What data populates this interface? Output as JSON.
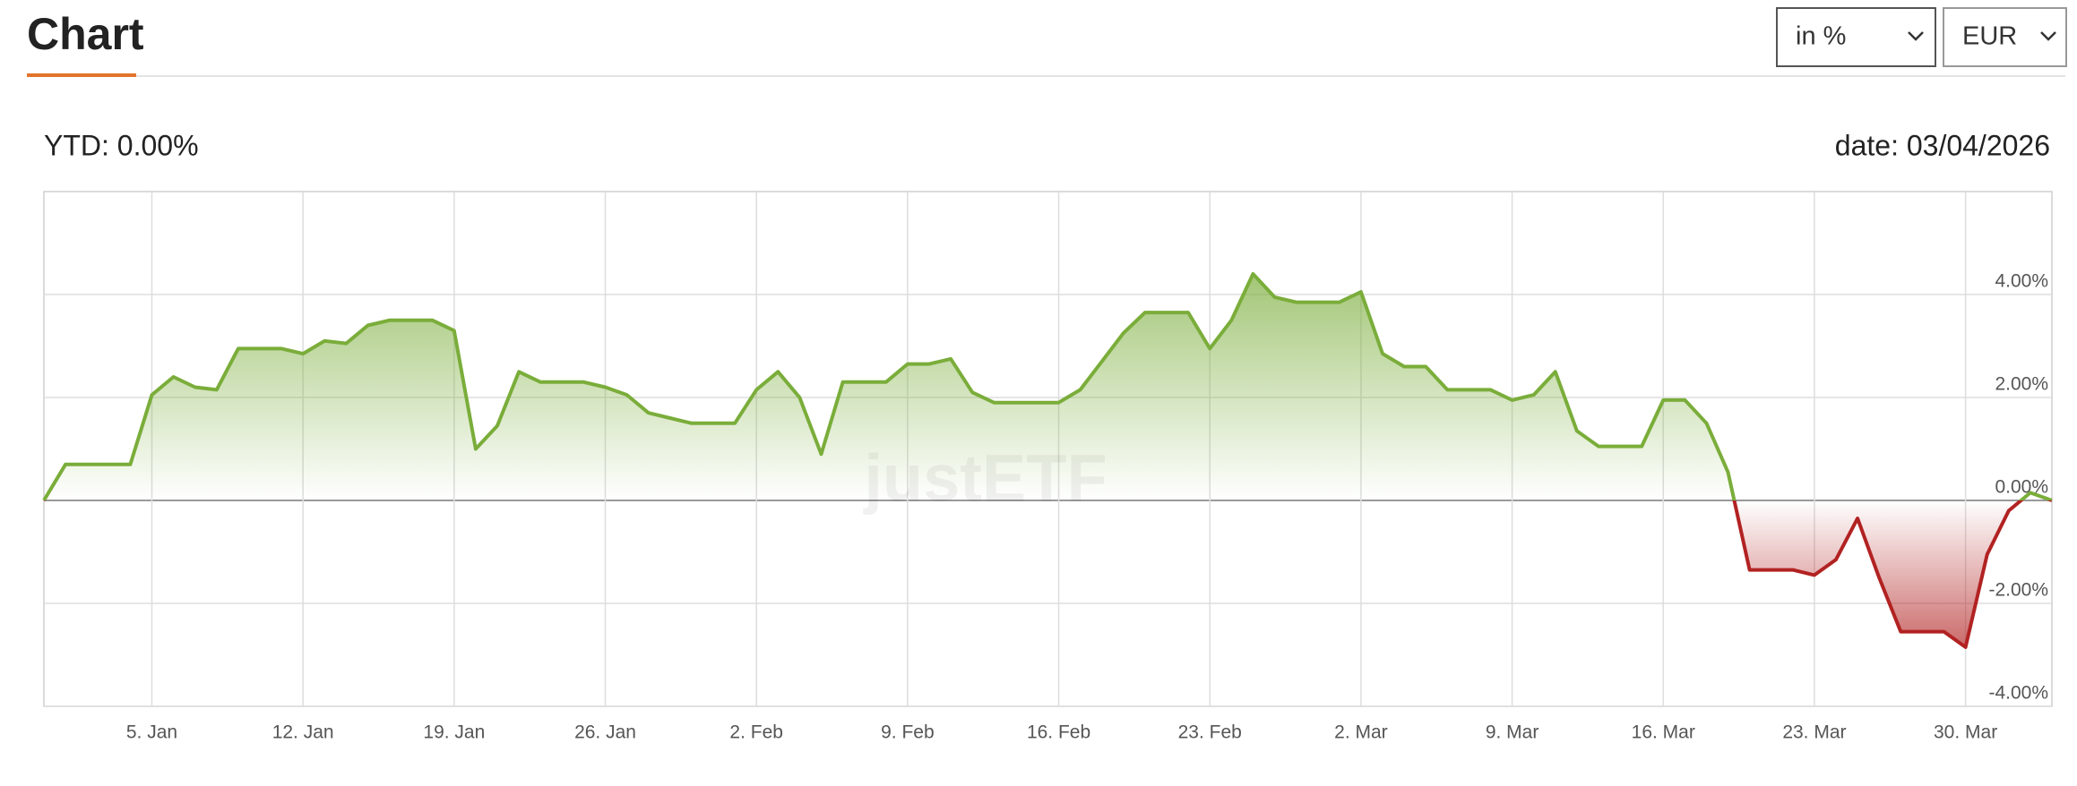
{
  "header": {
    "title": "Chart",
    "unit_select": "in %",
    "currency_select": "EUR"
  },
  "summary": {
    "ytd": "YTD: 0.00%",
    "date": "date: 03/04/2026"
  },
  "watermark": "justETF",
  "chart_data": {
    "type": "area",
    "x": [
      "2025-12-31",
      "2026-01-01",
      "2026-01-02",
      "2026-01-03",
      "2026-01-04",
      "2026-01-05",
      "2026-01-06",
      "2026-01-07",
      "2026-01-08",
      "2026-01-09",
      "2026-01-10",
      "2026-01-11",
      "2026-01-12",
      "2026-01-13",
      "2026-01-14",
      "2026-01-15",
      "2026-01-16",
      "2026-01-17",
      "2026-01-18",
      "2026-01-19",
      "2026-01-20",
      "2026-01-21",
      "2026-01-22",
      "2026-01-23",
      "2026-01-24",
      "2026-01-25",
      "2026-01-26",
      "2026-01-27",
      "2026-01-28",
      "2026-01-29",
      "2026-01-30",
      "2026-01-31",
      "2026-02-01",
      "2026-02-02",
      "2026-02-03",
      "2026-02-04",
      "2026-02-05",
      "2026-02-06",
      "2026-02-07",
      "2026-02-08",
      "2026-02-09",
      "2026-02-10",
      "2026-02-11",
      "2026-02-12",
      "2026-02-13",
      "2026-02-14",
      "2026-02-15",
      "2026-02-16",
      "2026-02-17",
      "2026-02-18",
      "2026-02-19",
      "2026-02-20",
      "2026-02-21",
      "2026-02-22",
      "2026-02-23",
      "2026-02-24",
      "2026-02-25",
      "2026-02-26",
      "2026-02-27",
      "2026-02-28",
      "2026-03-01",
      "2026-03-02",
      "2026-03-03",
      "2026-03-04",
      "2026-03-05",
      "2026-03-06",
      "2026-03-07",
      "2026-03-08",
      "2026-03-09",
      "2026-03-10",
      "2026-03-11",
      "2026-03-12",
      "2026-03-13",
      "2026-03-14",
      "2026-03-15",
      "2026-03-16",
      "2026-03-17",
      "2026-03-18",
      "2026-03-19",
      "2026-03-20",
      "2026-03-21",
      "2026-03-22",
      "2026-03-23",
      "2026-03-24",
      "2026-03-25",
      "2026-03-26",
      "2026-03-27",
      "2026-03-28",
      "2026-03-29",
      "2026-03-30",
      "2026-03-31",
      "2026-04-01",
      "2026-04-02",
      "2026-04-03"
    ],
    "values": [
      0,
      0.7,
      0.7,
      0.7,
      0.7,
      2.05,
      2.4,
      2.2,
      2.15,
      2.95,
      2.95,
      2.95,
      2.85,
      3.1,
      3.05,
      3.4,
      3.5,
      3.5,
      3.5,
      3.3,
      1.0,
      1.45,
      2.5,
      2.3,
      2.3,
      2.3,
      2.2,
      2.05,
      1.7,
      1.6,
      1.5,
      1.5,
      1.5,
      2.15,
      2.5,
      2.0,
      0.9,
      2.3,
      2.3,
      2.3,
      2.65,
      2.65,
      2.75,
      2.1,
      1.9,
      1.9,
      1.9,
      1.9,
      2.15,
      2.7,
      3.25,
      3.65,
      3.65,
      3.65,
      2.95,
      3.5,
      4.4,
      3.95,
      3.85,
      3.85,
      3.85,
      4.05,
      2.85,
      2.6,
      2.6,
      2.15,
      2.15,
      2.15,
      1.95,
      2.05,
      2.5,
      1.35,
      1.05,
      1.05,
      1.05,
      1.95,
      1.95,
      1.5,
      0.55,
      -1.35,
      -1.35,
      -1.35,
      -1.45,
      -1.15,
      -0.35,
      -1.5,
      -2.55,
      -2.55,
      -2.55,
      -2.85,
      -1.05,
      -0.2,
      0.15,
      0
    ],
    "positive_color": "#7aad3a",
    "negative_color": "#b22222",
    "xlim": [
      "2025-12-31",
      "2026-04-03"
    ],
    "xticks": [
      {
        "value": "2026-01-05",
        "label": "5. Jan"
      },
      {
        "value": "2026-01-12",
        "label": "12. Jan"
      },
      {
        "value": "2026-01-19",
        "label": "19. Jan"
      },
      {
        "value": "2026-01-26",
        "label": "26. Jan"
      },
      {
        "value": "2026-02-02",
        "label": "2. Feb"
      },
      {
        "value": "2026-02-09",
        "label": "9. Feb"
      },
      {
        "value": "2026-02-16",
        "label": "16. Feb"
      },
      {
        "value": "2026-02-23",
        "label": "23. Feb"
      },
      {
        "value": "2026-03-02",
        "label": "2. Mar"
      },
      {
        "value": "2026-03-09",
        "label": "9. Mar"
      },
      {
        "value": "2026-03-16",
        "label": "16. Mar"
      },
      {
        "value": "2026-03-23",
        "label": "23. Mar"
      },
      {
        "value": "2026-03-30",
        "label": "30. Mar"
      }
    ],
    "ylim": [
      -4,
      6
    ],
    "yticks": [
      {
        "value": -4,
        "label": "-4.00%"
      },
      {
        "value": -2,
        "label": "-2.00%"
      },
      {
        "value": 0,
        "label": "0.00%"
      },
      {
        "value": 2,
        "label": "2.00%"
      },
      {
        "value": 4,
        "label": "4.00%"
      }
    ],
    "grid": true
  }
}
